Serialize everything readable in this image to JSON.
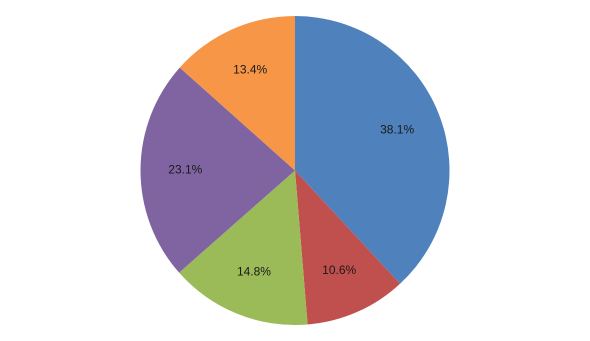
{
  "chart_data": {
    "type": "pie",
    "values": [
      38.1,
      10.6,
      14.8,
      23.1,
      13.4
    ],
    "value_labels": [
      "38.1%",
      "10.6%",
      "14.8%",
      "23.1%",
      "13.4%"
    ],
    "colors": [
      "#4f81bd",
      "#c0504d",
      "#9bbb59",
      "#8064a2",
      "#f79646"
    ]
  }
}
